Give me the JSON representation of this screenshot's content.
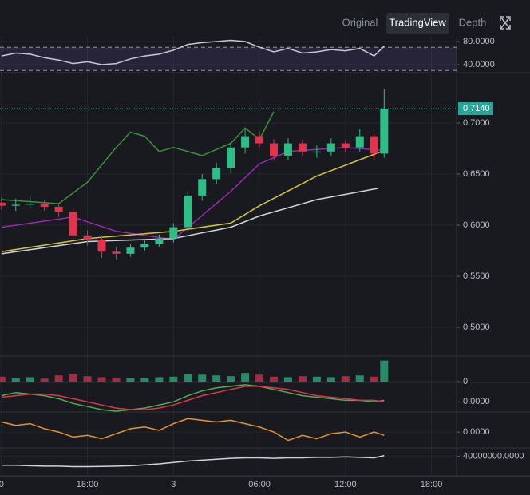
{
  "toolbar": {
    "tabs": [
      "Original",
      "TradingView",
      "Depth"
    ],
    "active": 1
  },
  "chart_data": [
    {
      "type": "candlestick",
      "x": [
        -12,
        -11,
        -10,
        -9,
        -8,
        -7,
        -6,
        -5,
        -4,
        -3,
        -2,
        -1,
        0,
        1,
        2,
        3,
        4,
        5,
        6,
        7,
        8,
        9,
        10,
        11,
        12,
        13,
        14,
        14.7
      ],
      "open": [
        0.622,
        0.619,
        0.62,
        0.621,
        0.618,
        0.613,
        0.59,
        0.586,
        0.574,
        0.572,
        0.578,
        0.582,
        0.587,
        0.598,
        0.629,
        0.645,
        0.656,
        0.676,
        0.687,
        0.68,
        0.668,
        0.68,
        0.672,
        0.672,
        0.68,
        0.676,
        0.687,
        0.67
      ],
      "high": [
        0.627,
        0.626,
        0.628,
        0.625,
        0.622,
        0.616,
        0.595,
        0.59,
        0.579,
        0.582,
        0.586,
        0.591,
        0.602,
        0.633,
        0.65,
        0.661,
        0.681,
        0.694,
        0.692,
        0.684,
        0.685,
        0.684,
        0.678,
        0.685,
        0.683,
        0.694,
        0.69,
        0.733
      ],
      "low": [
        0.615,
        0.614,
        0.616,
        0.614,
        0.608,
        0.583,
        0.58,
        0.568,
        0.566,
        0.569,
        0.575,
        0.579,
        0.583,
        0.594,
        0.624,
        0.64,
        0.651,
        0.67,
        0.676,
        0.663,
        0.664,
        0.667,
        0.666,
        0.668,
        0.671,
        0.672,
        0.664,
        0.666
      ],
      "close": [
        0.619,
        0.62,
        0.621,
        0.618,
        0.613,
        0.59,
        0.586,
        0.574,
        0.572,
        0.578,
        0.582,
        0.587,
        0.598,
        0.629,
        0.645,
        0.656,
        0.676,
        0.687,
        0.68,
        0.668,
        0.68,
        0.672,
        0.672,
        0.68,
        0.676,
        0.687,
        0.67,
        0.714
      ],
      "up_color": "#2ebd85",
      "down_color": "#e0344f",
      "series": [
        {
          "color": "#3f8f3a",
          "x": [
            -12,
            -8,
            -6,
            -4,
            -3,
            -2,
            -1,
            0,
            2,
            4,
            5,
            6,
            7
          ],
          "values": [
            0.625,
            0.621,
            0.642,
            0.676,
            0.691,
            0.687,
            0.672,
            0.676,
            0.668,
            0.68,
            0.695,
            0.684,
            0.711
          ]
        },
        {
          "color": "#9c27b0",
          "x": [
            -12,
            -7,
            -4,
            0,
            4,
            6,
            8,
            12,
            14.7
          ],
          "values": [
            0.598,
            0.608,
            0.594,
            0.586,
            0.633,
            0.66,
            0.672,
            0.676,
            0.673
          ]
        },
        {
          "color": "#d4c72f",
          "x": [
            -12,
            -6,
            0,
            4,
            6,
            10,
            14.7
          ],
          "values": [
            0.574,
            0.587,
            0.594,
            0.602,
            0.619,
            0.648,
            0.673
          ]
        },
        {
          "color": "#d1d4dc",
          "x": [
            -12,
            -6,
            0,
            4,
            6,
            10,
            14.3
          ],
          "values": [
            0.572,
            0.584,
            0.587,
            0.598,
            0.609,
            0.625,
            0.636
          ]
        }
      ],
      "last_price": {
        "value": 0.714,
        "label": "0.7140"
      },
      "last_price_color": "#26a69a",
      "xlim": [
        -12.1,
        19.75
      ],
      "xticks": [
        {
          "value": -12,
          "label": "0"
        },
        {
          "value": -6,
          "label": "18:00"
        },
        {
          "value": 0,
          "label": "3"
        },
        {
          "value": 6,
          "label": "06:00"
        },
        {
          "value": 12,
          "label": "12:00"
        },
        {
          "value": 18,
          "label": "18:00"
        }
      ],
      "ylim": [
        0.4727,
        0.7484
      ],
      "yticks": [
        {
          "value": 0.7,
          "label": "0.7000"
        },
        {
          "value": 0.65,
          "label": "0.6500"
        },
        {
          "value": 0.6,
          "label": "0.6000"
        },
        {
          "value": 0.55,
          "label": "0.5500"
        },
        {
          "value": 0.5,
          "label": "0.5000"
        }
      ]
    },
    {
      "type": "line",
      "x": [
        -12,
        -11,
        -10,
        -9,
        -8,
        -7,
        -6,
        -5,
        -4,
        -3,
        -2,
        -1,
        0,
        1,
        2,
        3,
        4,
        5,
        6,
        7,
        8,
        9,
        10,
        11,
        12,
        13,
        14,
        14.7
      ],
      "series": [
        {
          "color": "#c8c8d0",
          "values": [
            55,
            60,
            58,
            52,
            48,
            42,
            45,
            40,
            42,
            50,
            55,
            58,
            65,
            75,
            78,
            80,
            82,
            80,
            70,
            62,
            68,
            60,
            62,
            66,
            64,
            68,
            55,
            72
          ]
        }
      ],
      "levels": [
        70,
        30
      ],
      "band_color": "#7e57c2",
      "ylim": [
        27.6,
        85.5
      ],
      "yticks": [
        {
          "value": 80,
          "label": "80.0000"
        },
        {
          "value": 40,
          "label": "40.0000"
        }
      ]
    },
    {
      "type": "bar",
      "x": [
        -12,
        -11,
        -10,
        -9,
        -8,
        -7,
        -6,
        -5,
        -4,
        -3,
        -2,
        -1,
        0,
        1,
        2,
        3,
        4,
        5,
        6,
        7,
        8,
        9,
        10,
        11,
        12,
        13,
        14,
        14.7
      ],
      "values": [
        20,
        15,
        18,
        12,
        25,
        30,
        22,
        18,
        15,
        14,
        16,
        18,
        20,
        30,
        28,
        25,
        22,
        35,
        28,
        20,
        18,
        22,
        20,
        18,
        22,
        25,
        20,
        85
      ],
      "ylim": [
        0,
        100
      ],
      "yticks": [
        0
      ]
    },
    {
      "type": "line",
      "x": [
        -12,
        -11,
        -10,
        -9,
        -8,
        -7,
        -6,
        -5,
        -4,
        -3,
        -2,
        -1,
        0,
        1,
        2,
        3,
        4,
        5,
        6,
        7,
        8,
        9,
        10,
        11,
        12,
        13,
        14,
        14.7
      ],
      "series": [
        {
          "color": "#4caf50",
          "values": [
            0.004,
            0.006,
            0.005,
            0.004,
            0.002,
            -0.001,
            -0.003,
            -0.005,
            -0.006,
            -0.005,
            -0.004,
            -0.002,
            0.0,
            0.004,
            0.007,
            0.009,
            0.01,
            0.011,
            0.01,
            0.008,
            0.006,
            0.004,
            0.003,
            0.002,
            0.001,
            0.001,
            0.0,
            0.001
          ]
        },
        {
          "color": "#e0344f",
          "values": [
            0.003,
            0.004,
            0.005,
            0.005,
            0.004,
            0.002,
            0.0,
            -0.002,
            -0.004,
            -0.005,
            -0.005,
            -0.004,
            -0.002,
            0.001,
            0.004,
            0.006,
            0.008,
            0.01,
            0.01,
            0.009,
            0.008,
            0.006,
            0.004,
            0.003,
            0.002,
            0.001,
            0.001,
            0.0
          ]
        }
      ],
      "ylim": [
        -0.006,
        0.012
      ],
      "yticks": [
        {
          "value": 0,
          "label": "0.0000"
        }
      ]
    },
    {
      "type": "line",
      "x": [
        -12,
        -11,
        -10,
        -9,
        -8,
        -7,
        -6,
        -5,
        -4,
        -3,
        -2,
        -1,
        0,
        1,
        2,
        3,
        4,
        5,
        6,
        7,
        8,
        9,
        10,
        11,
        12,
        13,
        14,
        14.7
      ],
      "series": [
        {
          "color": "#e6952a",
          "values": [
            0.6,
            0.4,
            0.5,
            0.2,
            0.0,
            -0.3,
            -0.2,
            -0.4,
            -0.1,
            0.2,
            0.3,
            0.1,
            0.5,
            0.8,
            0.7,
            0.6,
            0.7,
            0.5,
            0.3,
            0.0,
            -0.5,
            -0.2,
            -0.4,
            -0.1,
            0.0,
            -0.3,
            0.0,
            -0.2
          ]
        }
      ],
      "ylim": [
        -0.9,
        1.1
      ],
      "yticks": [
        {
          "value": 0,
          "label": "0.0000"
        }
      ]
    },
    {
      "type": "line",
      "x": [
        -12,
        -11,
        -10,
        -9,
        -8,
        -7,
        -6,
        -5,
        -4,
        -3,
        -2,
        -1,
        0,
        1,
        2,
        3,
        4,
        5,
        6,
        7,
        8,
        9,
        10,
        11,
        12,
        13,
        14,
        14.7
      ],
      "series": [
        {
          "color": "#d1d4dc",
          "values": [
            21000000,
            21000000,
            20000000,
            19000000,
            19000000,
            18000000,
            18000000,
            18500000,
            19000000,
            20000000,
            22000000,
            24000000,
            27000000,
            30000000,
            32000000,
            34000000,
            36000000,
            37000000,
            37000000,
            36000000,
            37000000,
            37000000,
            38000000,
            38000000,
            39000000,
            38000000,
            37000000,
            42000000
          ]
        }
      ],
      "ylim": [
        0,
        55000000
      ],
      "yticks": [
        {
          "value": 40000000,
          "label": "40000000.0000"
        }
      ]
    }
  ]
}
